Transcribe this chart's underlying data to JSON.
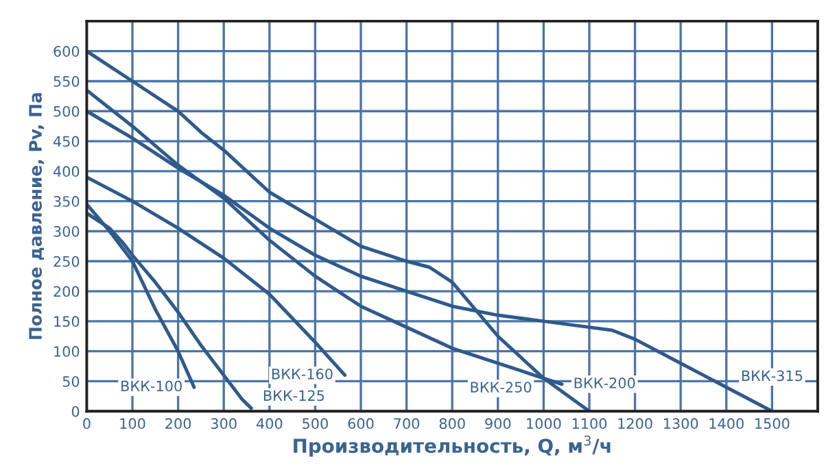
{
  "chart_data": {
    "type": "line",
    "xlabel": "Производительность, Q, м$^{3}$/ч",
    "ylabel": "Полное давление, Pv, Па",
    "xlim": [
      0,
      1600
    ],
    "xticks": [
      0,
      100,
      200,
      300,
      400,
      500,
      600,
      700,
      800,
      900,
      1000,
      1100,
      1200,
      1300,
      1400,
      1500
    ],
    "ylim": [
      0,
      650
    ],
    "yticks": [
      0,
      50,
      100,
      150,
      200,
      250,
      300,
      350,
      400,
      450,
      500,
      550,
      600
    ],
    "grid": true,
    "marker": "none",
    "line_style": "solid",
    "series": [
      {
        "name": "ВКК-100",
        "color": "#2f5a8c",
        "x": [
          0,
          50,
          100,
          150,
          200,
          235
        ],
        "values": [
          345,
          300,
          250,
          170,
          100,
          40
        ]
      },
      {
        "name": "ВКК-125",
        "color": "#2f5a8c",
        "x": [
          0,
          50,
          80,
          100,
          150,
          200,
          250,
          300,
          340,
          360
        ],
        "values": [
          330,
          305,
          280,
          260,
          215,
          165,
          110,
          60,
          20,
          5
        ]
      },
      {
        "name": "ВКК-160",
        "color": "#2f5a8c",
        "x": [
          0,
          100,
          200,
          300,
          400,
          500,
          565
        ],
        "values": [
          390,
          350,
          305,
          255,
          195,
          115,
          60
        ]
      },
      {
        "name": "ВКК-200",
        "color": "#2f5a8c",
        "x": [
          0,
          100,
          200,
          300,
          400,
          500,
          600,
          700,
          800,
          900,
          1000,
          1040
        ],
        "values": [
          535,
          475,
          410,
          355,
          285,
          225,
          175,
          140,
          105,
          80,
          55,
          45
        ]
      },
      {
        "name": "ВКК-250",
        "color": "#2f5a8c",
        "x": [
          0,
          100,
          200,
          250,
          300,
          400,
          500,
          600,
          700,
          750,
          800,
          900,
          1000,
          1100
        ],
        "values": [
          600,
          550,
          500,
          465,
          435,
          365,
          320,
          275,
          250,
          240,
          215,
          125,
          55,
          0
        ]
      },
      {
        "name": "ВКК-315",
        "color": "#2f5a8c",
        "x": [
          0,
          100,
          200,
          300,
          400,
          500,
          600,
          700,
          800,
          900,
          1000,
          1100,
          1150,
          1200,
          1300,
          1400,
          1500
        ],
        "values": [
          500,
          455,
          405,
          360,
          305,
          260,
          225,
          200,
          175,
          160,
          150,
          140,
          135,
          120,
          80,
          40,
          0
        ]
      }
    ]
  }
}
